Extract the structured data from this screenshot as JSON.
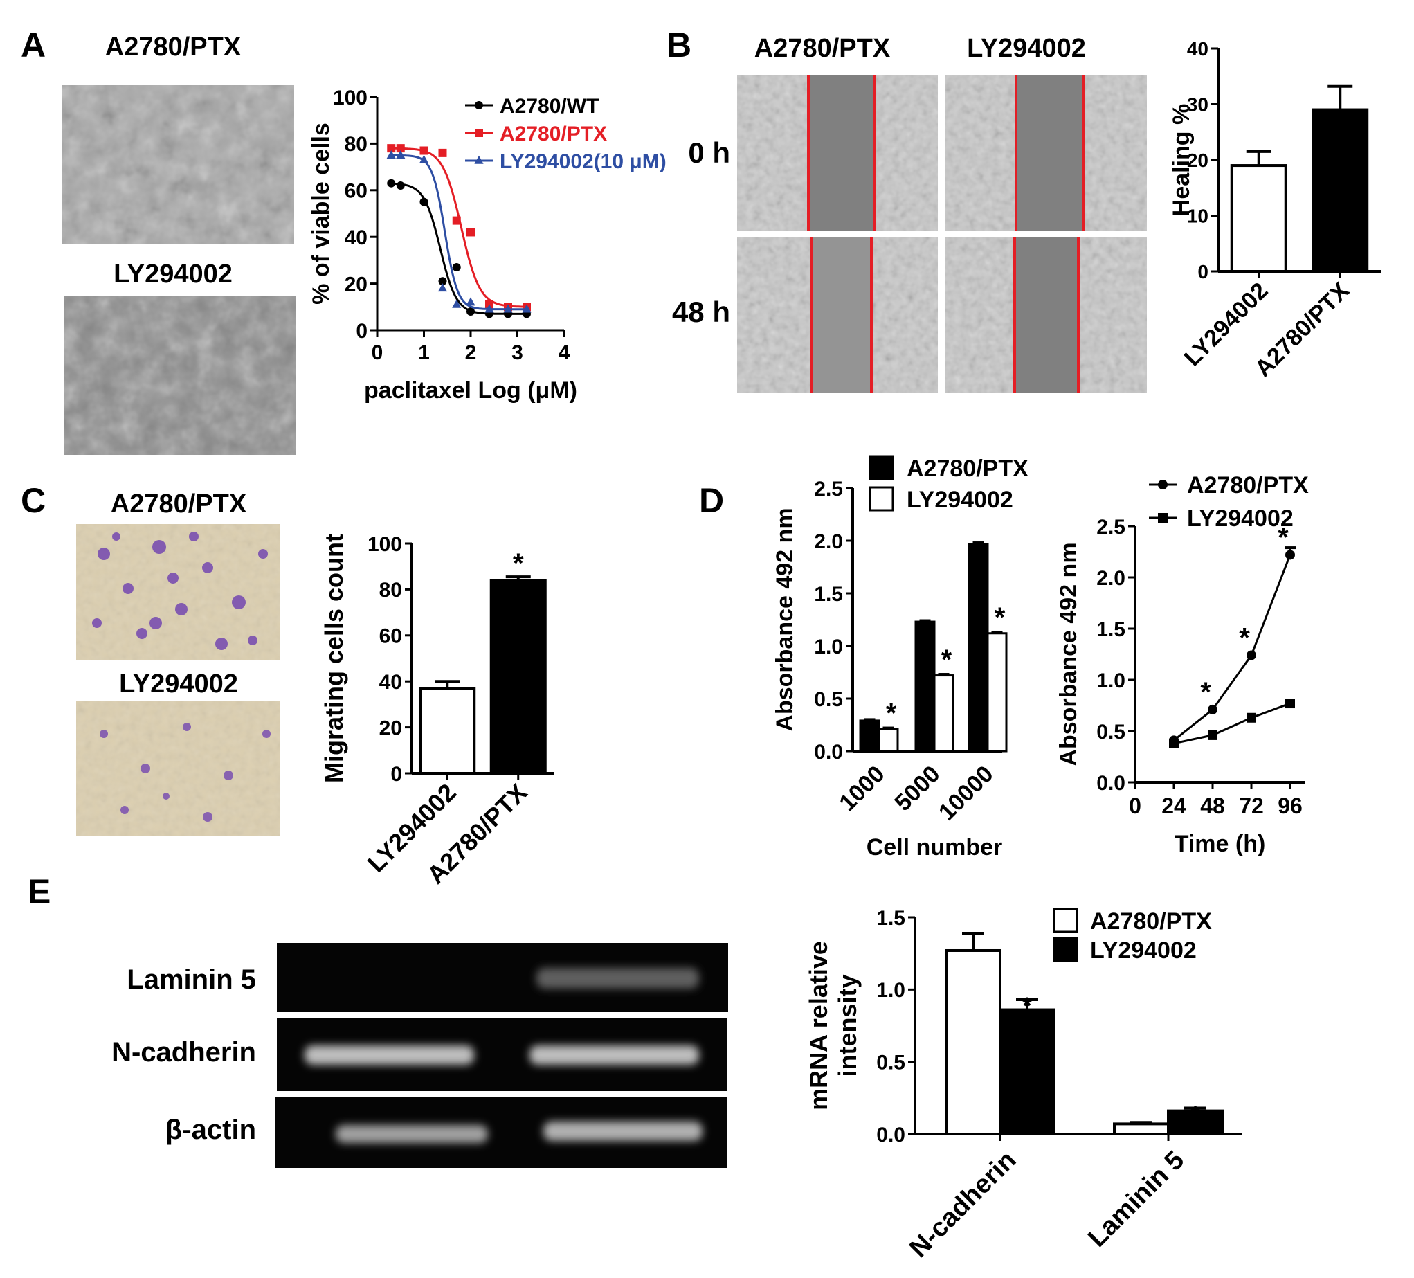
{
  "panels": {
    "A": {
      "letter": "A",
      "image_labels": [
        "A2780/PTX",
        "LY294002"
      ],
      "chart_data": {
        "type": "line",
        "ylabel": "% of viable cells",
        "xlabel": "paclitaxel Log (μM)",
        "xlim": [
          0,
          4
        ],
        "ylim": [
          0,
          100
        ],
        "xticks": [
          0,
          1,
          2,
          3,
          4
        ],
        "yticks": [
          0,
          20,
          40,
          60,
          80,
          100
        ],
        "legend_position": "top-right",
        "series": [
          {
            "name": "A2780/WT",
            "color": "#000000",
            "marker": "circle",
            "x": [
              0.3,
              0.5,
              1.0,
              1.4,
              1.7,
              2.0,
              2.4,
              2.8,
              3.2
            ],
            "y": [
              63,
              62,
              55,
              21,
              27,
              8,
              7,
              7,
              7
            ],
            "fit": {
              "top": 63,
              "bottom": 7,
              "logec50": 1.35,
              "slope": 2.5
            }
          },
          {
            "name": "A2780/PTX",
            "color": "#e41e25",
            "marker": "square",
            "x": [
              0.3,
              0.5,
              1.0,
              1.4,
              1.7,
              2.0,
              2.4,
              2.8,
              3.2
            ],
            "y": [
              78,
              78,
              77,
              76,
              47,
              42,
              11,
              10,
              10
            ],
            "fit": {
              "top": 78,
              "bottom": 10,
              "logec50": 1.8,
              "slope": 2.2
            }
          },
          {
            "name": "LY294002(10 μM)",
            "color": "#2e4ea3",
            "marker": "triangle",
            "x": [
              0.3,
              0.5,
              1.0,
              1.4,
              1.7,
              2.0,
              2.4,
              2.8,
              3.2
            ],
            "y": [
              75,
              75,
              73,
              18,
              11,
              12,
              9,
              9,
              9
            ],
            "fit": {
              "top": 75,
              "bottom": 9,
              "logec50": 1.45,
              "slope": 3.2
            }
          }
        ]
      }
    },
    "B": {
      "letter": "B",
      "image_columns": [
        "A2780/PTX",
        "LY294002"
      ],
      "image_rows": [
        "0 h",
        "48 h"
      ],
      "chart_data": {
        "type": "bar",
        "ylabel": "Healing %",
        "ylim": [
          0,
          40
        ],
        "yticks": [
          0,
          10,
          20,
          30,
          40
        ],
        "categories": [
          "LY294002",
          "A2780/PTX"
        ],
        "values": [
          19,
          29
        ],
        "errors": [
          2.5,
          4.2
        ],
        "fills": [
          "#ffffff",
          "#000000"
        ]
      }
    },
    "C": {
      "letter": "C",
      "image_labels": [
        "A2780/PTX",
        "LY294002"
      ],
      "chart_data": {
        "type": "bar",
        "ylabel": "Migrating cells count",
        "ylim": [
          0,
          100
        ],
        "yticks": [
          0,
          20,
          40,
          60,
          80,
          100
        ],
        "categories": [
          "LY294002",
          "A2780/PTX"
        ],
        "values": [
          37,
          84
        ],
        "errors": [
          3,
          1.5
        ],
        "fills": [
          "#ffffff",
          "#000000"
        ],
        "annotations": [
          "",
          "*"
        ]
      }
    },
    "D": {
      "letter": "D",
      "charts": [
        {
          "type": "bar",
          "ylabel": "Absorbance 492 nm",
          "xlabel": "Cell number",
          "ylim": [
            0,
            2.5
          ],
          "yticks": [
            "0.0",
            "0.5",
            "1.0",
            "1.5",
            "2.0",
            "2.5"
          ],
          "categories": [
            "1000",
            "5000",
            "10000"
          ],
          "legend_position": "top-right",
          "series": [
            {
              "name": "A2780/PTX",
              "fill": "#000000",
              "values": [
                0.29,
                1.23,
                1.97
              ],
              "errors": [
                0.01,
                0.01,
                0.01
              ],
              "annotations": [
                "",
                "",
                ""
              ]
            },
            {
              "name": "LY294002",
              "fill": "#ffffff",
              "values": [
                0.21,
                0.72,
                1.12
              ],
              "errors": [
                0.01,
                0.01,
                0.01
              ],
              "annotations": [
                "*",
                "*",
                "*"
              ]
            }
          ]
        },
        {
          "type": "line",
          "ylabel": "Absorbance 492 nm",
          "xlabel": "Time (h)",
          "xlim": [
            0,
            105
          ],
          "ylim": [
            0,
            2.5
          ],
          "xticks": [
            0,
            24,
            48,
            72,
            96
          ],
          "yticks": [
            "0.0",
            "0.5",
            "1.0",
            "1.5",
            "2.0",
            "2.5"
          ],
          "legend_position": "top-left",
          "series": [
            {
              "name": "A2780/PTX",
              "marker": "circle",
              "x": [
                24,
                48,
                72,
                96
              ],
              "y": [
                0.41,
                0.71,
                1.24,
                2.22
              ],
              "errors": [
                0.02,
                0.02,
                0.02,
                0.07
              ],
              "annotations": [
                "",
                "*",
                "*",
                "*"
              ]
            },
            {
              "name": "LY294002",
              "marker": "square",
              "x": [
                24,
                48,
                72,
                96
              ],
              "y": [
                0.38,
                0.46,
                0.63,
                0.77
              ],
              "errors": [
                0.02,
                0.02,
                0.02,
                0.02
              ],
              "annotations": [
                "",
                "",
                "",
                ""
              ]
            }
          ]
        }
      ]
    },
    "E": {
      "letter": "E",
      "blot_labels": [
        "Laminin 5",
        "N-cadherin",
        "β-actin"
      ],
      "chart_data": {
        "type": "bar",
        "ylabel_lines": [
          "mRNA relative",
          "intensity"
        ],
        "ylim": [
          0,
          1.5
        ],
        "yticks": [
          "0.0",
          "0.5",
          "1.0",
          "1.5"
        ],
        "categories": [
          "N-cadherin",
          "Laminin 5"
        ],
        "legend_position": "top-right",
        "series": [
          {
            "name": "A2780/PTX",
            "fill": "#ffffff",
            "values": [
              1.27,
              0.07
            ],
            "errors": [
              0.12,
              0.01
            ],
            "annotations": [
              "",
              ""
            ]
          },
          {
            "name": "LY294002",
            "fill": "#000000",
            "values": [
              0.86,
              0.16
            ],
            "errors": [
              0.07,
              0.02
            ],
            "annotations": [
              "*",
              "*"
            ]
          }
        ]
      }
    }
  }
}
